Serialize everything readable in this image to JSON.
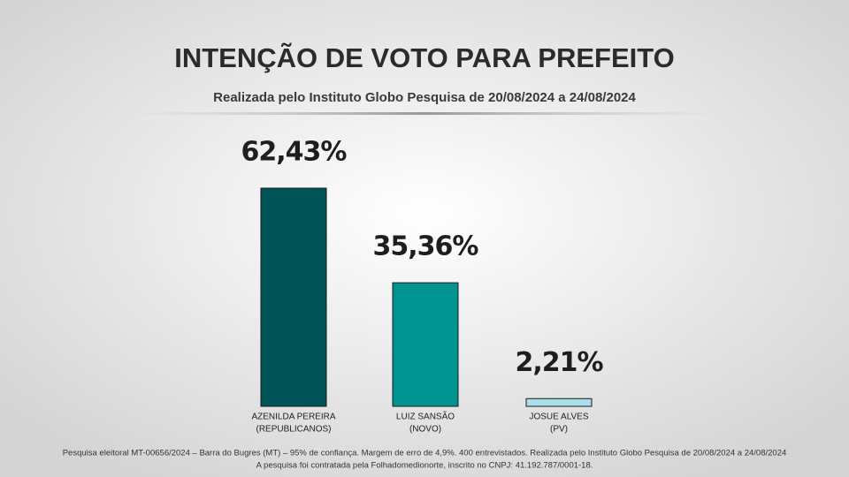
{
  "chart_data": {
    "type": "bar",
    "title": "INTENÇÃO DE VOTO PARA PREFEITO",
    "subtitle": "Realizada pelo Instituto Globo Pesquisa de 20/08/2024 a 24/08/2024",
    "categories": [
      "AZENILDA PEREIRA",
      "LUIZ SANSÃO",
      "JOSUE ALVES"
    ],
    "category_subtitles": [
      "(REPUBLICANOS)",
      "(NOVO)",
      "(PV)"
    ],
    "values": [
      62.43,
      35.36,
      2.21
    ],
    "value_labels": [
      "62,43%",
      "35,36%",
      "2,21%"
    ],
    "colors": [
      "#005457",
      "#00938f",
      "#a8e0ea"
    ],
    "footnotes": [
      "Pesquisa eleitoral MT-00656/2024 – Barra do Bugres (MT) – 95% de confiança. Margem de erro de 4,9%. 400 entrevistados. Realizada pelo Instituto Globo Pesquisa de 20/08/2024 a 24/08/2024",
      "A pesquisa foi contratada pela Folhadomedionorte, inscrito no CNPJ: 41.192.787/0001-18."
    ]
  }
}
